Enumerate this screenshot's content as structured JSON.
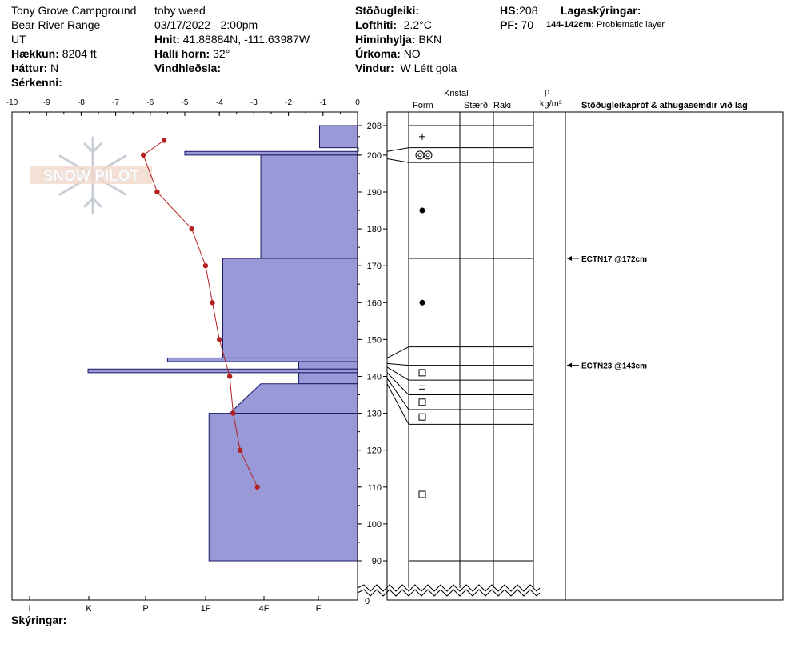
{
  "header": {
    "location": "Tony Grove Campground",
    "range": "Bear River Range",
    "state": "UT",
    "elevation_label": "Hækkun:",
    "elevation_value": "8204 ft",
    "aspect_label": "Þáttur:",
    "aspect_value": "N",
    "features_label": "Sérkenni:",
    "observer": "toby weed",
    "datetime": "03/17/2022 - 2:00pm",
    "coords_label": "Hnit:",
    "coords_value": "41.88884N, -111.63987W",
    "slope_label": "Halli horn:",
    "slope_value": "32°",
    "wind_load_label": "Vindhleðsla:",
    "stability_label": "Stöðugleiki:",
    "air_temp_label": "Lofthiti:",
    "air_temp_value": "-2.2°C",
    "sky_label": "Himinhylja:",
    "sky_value": "BKN",
    "precip_label": "Úrkoma:",
    "precip_value": "NO",
    "wind_label": "Vindur:",
    "wind_value": "W Létt gola",
    "hs_label": "HS:",
    "hs_value": "208",
    "pf_label": "PF:",
    "pf_value": "70",
    "layer_notes_label": "Lagaskýringar:",
    "layer_note_range": "144-142cm:",
    "layer_note_text": "Problematic layer"
  },
  "logo_text": "SNOW PILOT",
  "columns": {
    "crystal": "Kristal",
    "form": "Form",
    "size": "Stærð",
    "moisture": "Raki",
    "rho": "ρ",
    "density_unit": "kg/m³",
    "tests": "Stöðugleikapróf & athugasemdir við lag"
  },
  "footer": {
    "notes_label": "Skýringar:"
  },
  "tests": [
    {
      "label": "ECTN17 @172cm",
      "depth": 172
    },
    {
      "label": "ECTN23 @143cm",
      "depth": 143
    }
  ],
  "chart_data": {
    "type": "snow_profile",
    "temperature_axis": {
      "ticks": [
        -10,
        -9,
        -8,
        -7,
        -6,
        -5,
        -4,
        -3,
        -2,
        -1,
        0
      ],
      "range": [
        -10,
        0
      ]
    },
    "hardness_axis": {
      "ticks": [
        "I",
        "K",
        "P",
        "1F",
        "4F",
        "F"
      ]
    },
    "depth_axis": {
      "ticks": [
        90,
        100,
        110,
        120,
        130,
        140,
        150,
        160,
        170,
        180,
        190,
        200,
        208
      ],
      "min": 0,
      "max": 208,
      "break_label": "0"
    },
    "temperature_profile": [
      {
        "depth": 204,
        "temp": -5.6
      },
      {
        "depth": 200,
        "temp": -6.2
      },
      {
        "depth": 190,
        "temp": -5.8
      },
      {
        "depth": 180,
        "temp": -4.8
      },
      {
        "depth": 170,
        "temp": -4.4
      },
      {
        "depth": 160,
        "temp": -4.2
      },
      {
        "depth": 150,
        "temp": -4.0
      },
      {
        "depth": 140,
        "temp": -3.7
      },
      {
        "depth": 130,
        "temp": -3.6
      },
      {
        "depth": 120,
        "temp": -3.4
      },
      {
        "depth": 110,
        "temp": -2.9
      }
    ],
    "hardness_layers": [
      {
        "top": 208,
        "bottom": 202,
        "temp_equiv": -1.1
      },
      {
        "top": 202,
        "bottom": 201,
        "temp_equiv": -0.0
      },
      {
        "top": 201,
        "bottom": 200,
        "temp_equiv": -5.0
      },
      {
        "top": 200,
        "bottom": 172,
        "temp_equiv": -2.8
      },
      {
        "top": 172,
        "bottom": 145,
        "temp_equiv": -3.9
      },
      {
        "top": 145,
        "bottom": 144,
        "temp_equiv": -5.5
      },
      {
        "top": 144,
        "bottom": 142,
        "temp_equiv": -1.7
      },
      {
        "top": 142,
        "bottom": 141,
        "temp_equiv": -7.8
      },
      {
        "top": 141,
        "bottom": 138,
        "temp_equiv": -1.7
      },
      {
        "top": 138,
        "bottom": 130,
        "temp_equiv": -2.8,
        "slant_to": -3.7
      },
      {
        "top": 130,
        "bottom": 90,
        "temp_equiv": -4.3
      }
    ],
    "layer_boundaries": [
      208,
      202,
      198,
      172,
      148,
      143,
      139,
      135,
      131,
      127,
      90
    ],
    "grain_forms": [
      {
        "depth": 205,
        "symbol": "+"
      },
      {
        "depth": 200,
        "symbol": "◎◎"
      },
      {
        "depth": 185,
        "symbol": "●"
      },
      {
        "depth": 160,
        "symbol": "●"
      },
      {
        "depth": 141,
        "symbol": "□"
      },
      {
        "depth": 137,
        "symbol": "="
      },
      {
        "depth": 133,
        "symbol": "□"
      },
      {
        "depth": 129,
        "symbol": "□"
      },
      {
        "depth": 108,
        "symbol": "□"
      }
    ]
  }
}
